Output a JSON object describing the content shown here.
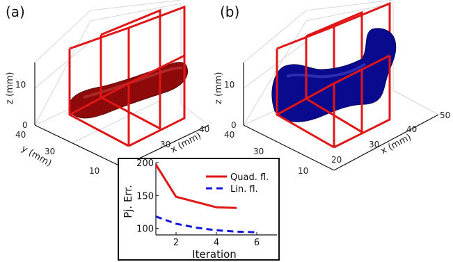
{
  "panels": {
    "a": {
      "label": "(a)",
      "xlabel": "x (mm)",
      "ylabel": "y (mm)",
      "zlabel": "z (mm)",
      "xticks": [
        "30",
        "40"
      ],
      "yticks": [
        "40",
        "30",
        "10"
      ],
      "zticks": [
        "10",
        "0"
      ],
      "shape_color": "#8e0a0a",
      "frame_color": "#e01515"
    },
    "b": {
      "label": "(b)",
      "xlabel": "x (mm)",
      "ylabel": "",
      "zlabel": "z (mm)",
      "xticks": [
        "20",
        "30",
        "40",
        "50"
      ],
      "yticks": [
        "40",
        "30",
        "10"
      ],
      "zticks": [
        "10",
        "0"
      ],
      "shape_color": "#0a0a8e",
      "frame_color": "#e01515"
    }
  },
  "chart_data": {
    "type": "line",
    "xlabel": "Iteration",
    "ylabel": "Pj. Err.",
    "xlim": [
      1,
      7
    ],
    "ylim": [
      90,
      200
    ],
    "xticks": [
      2,
      4,
      6
    ],
    "yticks": [
      100,
      150,
      200
    ],
    "series": [
      {
        "name": "Quad. fl.",
        "color": "#e01515",
        "dash": "solid",
        "x": [
          1,
          2,
          3,
          4,
          5
        ],
        "y": [
          197,
          148,
          140,
          132,
          131
        ]
      },
      {
        "name": "Lin. fl.",
        "color": "#1515e0",
        "dash": "dashed",
        "x": [
          1,
          2,
          3,
          4,
          5,
          6
        ],
        "y": [
          118,
          107,
          101,
          97,
          95,
          94
        ]
      }
    ],
    "legend_position": "top-right"
  }
}
